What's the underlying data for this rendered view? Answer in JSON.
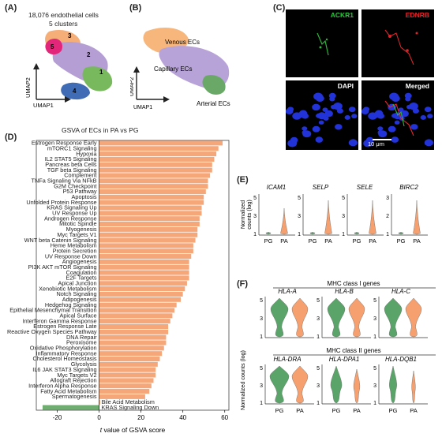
{
  "panels": {
    "a": {
      "letter": "(A)",
      "cells": "18,076 endothelial cells",
      "clusters": "5 clusters",
      "cluster_numbers": [
        "1",
        "2",
        "3",
        "4",
        "5"
      ],
      "xaxis": "UMAP1",
      "yaxis": "UMAP2"
    },
    "b": {
      "letter": "(B)",
      "labels": [
        "Venous ECs",
        "Capillary ECs",
        "Arterial ECs"
      ]
    },
    "c": {
      "letter": "(C)",
      "tiles": [
        {
          "label": "ACKR1",
          "color": "#29c93a"
        },
        {
          "label": "EDNRB",
          "color": "#e8262b"
        },
        {
          "label": "DAPI",
          "color": "#ffffff"
        },
        {
          "label": "Merged",
          "color": "#ffffff"
        }
      ],
      "scale_bar": "10 μm"
    },
    "d": {
      "letter": "(D)"
    },
    "e": {
      "letter": "(E)",
      "ylabel": "Normalized counts (log)",
      "genes": [
        "ICAM1",
        "SELP",
        "SELE",
        "BIRC2"
      ],
      "groups": [
        "PG",
        "PA"
      ],
      "ticks": [
        [
          "1",
          "3",
          "5"
        ],
        [
          "1",
          "3",
          "5"
        ],
        [
          "1",
          "3",
          "5"
        ],
        [
          "1",
          "2",
          "3"
        ]
      ]
    },
    "f": {
      "letter": "(F)",
      "ylabel": "Normalized counts (log)",
      "class1_title": "MHC class I genes",
      "class2_title": "MHC class II genes",
      "genes_class1": [
        "HLA-A",
        "HLA-B",
        "HLA-C"
      ],
      "genes_class2": [
        "HLA-DRA",
        "HLA-DPA1",
        "HLA-DQB1"
      ],
      "groups": [
        "PG",
        "PA"
      ],
      "ticks": [
        "1",
        "3",
        "5"
      ]
    }
  },
  "colors": {
    "pg": "#5aa46a",
    "pa": "#f5a06e",
    "venous": "#f7b77c",
    "capillary": "#b8a3d8",
    "arterial": "#6aa867",
    "c1": "#79b95e",
    "c2": "#b59ed4",
    "c3": "#f5ae78",
    "c4": "#3f6cb5",
    "c5": "#e2267a"
  },
  "chart_data": {
    "type": "bar",
    "title": "GSVA of ECs in PA vs PG",
    "xlabel": "t value of GSVA score",
    "xlim": [
      -30,
      62
    ],
    "xticks": [
      -20,
      0,
      20,
      40,
      60
    ],
    "categories": [
      "Estrogen Response Early",
      "mTORC1 Signaling",
      "Hypoxia",
      "IL2 STAT5 Signaling",
      "Pancreas beta Cells",
      "TGF beta Signaling",
      "Complement",
      "TNFa Signaling Via NFkB",
      "G2M Checkpoint",
      "P53 Pathway",
      "Apoptosis",
      "Unfolded Protein Response",
      "KRAS Signaling Up",
      "UV Response Up",
      "Androgen Response",
      "Mitotic Spindle",
      "Myogenesis",
      "Myc Targets V1",
      "WNT beta Catenin Signaling",
      "Heme Metabolism",
      "Protein Secretion",
      "UV Response Down",
      "Angiogenesis",
      "PI3K AKT mTOR Signaling",
      "Coagulation",
      "E2F Targets",
      "Apical Junction",
      "Xenobiotic Metabolism",
      "Notch Signaling",
      "Adipogenesis",
      "Hedgehog Signaling",
      "Epithelial Mesenchymal Transition",
      "Apical Surface",
      "Interferon Gamma Response",
      "Estrogen Response Late",
      "Reactive Oxygen Species Pathway",
      "DNA Repair",
      "Peroxisome",
      "Oxidative Phosphorylation",
      "Inflammatory Response",
      "Cholesterol Homeostasis",
      "Glycolysis",
      "IL6 JAK STAT3 Signaling",
      "Myc Targets V2",
      "Allograft Rejection",
      "Interferon Alpha Response",
      "Fatty Acid Metabolism",
      "Spermatogenesis",
      "Bile Acid Metabolism",
      "KRAS Signaling Down"
    ],
    "values": [
      59,
      57,
      56,
      55,
      54,
      54,
      53,
      52,
      52,
      51,
      50,
      50,
      49,
      49,
      48,
      48,
      47,
      47,
      46,
      45,
      45,
      44,
      43,
      43,
      43,
      43,
      42,
      41,
      40,
      39,
      37,
      36,
      35,
      34,
      33,
      33,
      32,
      32,
      31,
      30,
      29,
      28,
      27,
      27,
      26,
      25,
      24,
      22,
      0.5,
      -27
    ],
    "colors": {
      "positive": "#f5a77a",
      "negative": "#6fae70"
    }
  }
}
